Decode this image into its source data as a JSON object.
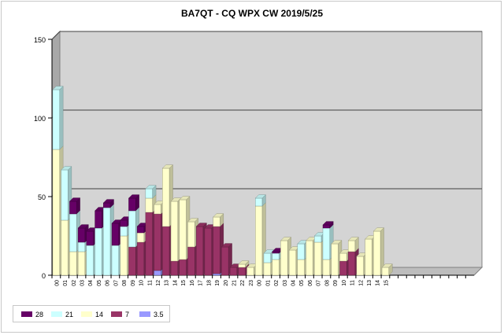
{
  "chart_data": {
    "type": "bar",
    "stacked": true,
    "three_d": true,
    "title": "BA7QT - CQ WPX  CW 2019/5/25",
    "xlabel": "",
    "ylabel": "",
    "ylim": [
      0,
      150
    ],
    "yticks": [
      "0",
      "50",
      "100",
      "150"
    ],
    "grid": true,
    "legend_position": "bottom-left",
    "categories": [
      "00",
      "01",
      "02",
      "03",
      "04",
      "05",
      "06",
      "07",
      "08",
      "09",
      "10",
      "11",
      "12",
      "13",
      "14",
      "15",
      "16",
      "17",
      "18",
      "19",
      "20",
      "21",
      "22",
      "23",
      "00",
      "01",
      "02",
      "03",
      "04",
      "05",
      "06",
      "07",
      "08",
      "09",
      "10",
      "11",
      "12",
      "13",
      "14",
      "15",
      "",
      "",
      "",
      "",
      "",
      "",
      "",
      "",
      "",
      ""
    ],
    "series": [
      {
        "name": "3.5",
        "color": "#9999ff",
        "values": [
          0,
          0,
          0,
          0,
          0,
          0,
          0,
          0,
          0,
          0,
          0,
          0,
          3,
          0,
          0,
          0,
          0,
          0,
          0,
          1,
          0,
          0,
          0,
          0,
          0,
          0,
          0,
          0,
          0,
          0,
          0,
          0,
          0,
          0,
          0,
          0,
          0,
          0,
          0,
          0,
          0,
          0,
          0,
          0,
          0,
          0,
          0,
          0,
          0,
          0
        ]
      },
      {
        "name": "7",
        "color": "#993366",
        "values": [
          0,
          0,
          0,
          0,
          0,
          0,
          0,
          0,
          0,
          18,
          21,
          40,
          36,
          31,
          9,
          10,
          18,
          31,
          30,
          30,
          18,
          5,
          5,
          0,
          0,
          0,
          0,
          0,
          0,
          0,
          0,
          0,
          0,
          0,
          9,
          15,
          0,
          0,
          0,
          0,
          0,
          0,
          0,
          0,
          0,
          0,
          0,
          0,
          0,
          0
        ]
      },
      {
        "name": "14",
        "color": "#ffffcc",
        "values": [
          80,
          35,
          15,
          15,
          0,
          0,
          0,
          0,
          25,
          0,
          6,
          9,
          6,
          37,
          38,
          38,
          16,
          0,
          0,
          6,
          0,
          0,
          2,
          5,
          44,
          8,
          10,
          22,
          16,
          10,
          22,
          21,
          10,
          20,
          5,
          7,
          12,
          23,
          28,
          5,
          0,
          0,
          0,
          0,
          0,
          0,
          0,
          0,
          0,
          0
        ]
      },
      {
        "name": "21",
        "color": "#ccffff",
        "values": [
          38,
          32,
          24,
          6,
          19,
          30,
          43,
          19,
          6,
          23,
          0,
          6,
          0,
          0,
          0,
          0,
          0,
          0,
          0,
          0,
          0,
          0,
          0,
          0,
          5,
          6,
          4,
          0,
          0,
          10,
          0,
          4,
          20,
          0,
          0,
          0,
          0,
          0,
          0,
          0,
          0,
          0,
          0,
          0,
          0,
          0,
          0,
          0,
          0,
          0
        ]
      },
      {
        "name": "28",
        "color": "#660066",
        "values": [
          0,
          0,
          8,
          9,
          9,
          11,
          3,
          14,
          4,
          8,
          4,
          0,
          0,
          0,
          0,
          0,
          0,
          0,
          0,
          0,
          0,
          0,
          0,
          0,
          0,
          0,
          1,
          0,
          0,
          0,
          0,
          0,
          2,
          0,
          0,
          0,
          0,
          0,
          0,
          0,
          0,
          0,
          0,
          0,
          0,
          0,
          0,
          0,
          0,
          0
        ]
      }
    ]
  },
  "legend": {
    "items": [
      {
        "label": "28",
        "color": "#660066"
      },
      {
        "label": "21",
        "color": "#ccffff"
      },
      {
        "label": "14",
        "color": "#ffffcc"
      },
      {
        "label": "7",
        "color": "#993366"
      },
      {
        "label": "3.5",
        "color": "#9999ff"
      }
    ]
  }
}
